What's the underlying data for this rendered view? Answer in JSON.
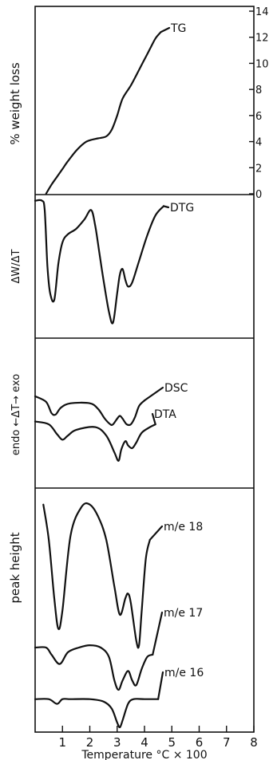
{
  "chart_data": {
    "type": "line",
    "xlabel": "Temperature °C × 100",
    "x_ticks": [
      "1",
      "2",
      "3",
      "4",
      "5",
      "6",
      "7",
      "8"
    ],
    "xlim": [
      0,
      8
    ],
    "panels": [
      {
        "id": "tg",
        "ylabel": "% weight loss",
        "right_ticks": [
          "0",
          "2",
          "4",
          "6",
          "8",
          "10",
          "12",
          "14"
        ],
        "ylim": [
          0,
          14
        ],
        "series": [
          {
            "name": "TG",
            "x": [
              0.4,
              0.6,
              0.8,
              1.0,
              1.2,
              1.5,
              1.8,
              2.0,
              2.3,
              2.6,
              2.8,
              3.0,
              3.2,
              3.5,
              3.8,
              4.0,
              4.2,
              4.4,
              4.6
            ],
            "y": [
              0.0,
              0.7,
              1.3,
              1.9,
              2.5,
              3.3,
              3.9,
              4.1,
              4.25,
              4.4,
              4.9,
              6.0,
              7.3,
              8.3,
              9.5,
              10.3,
              11.1,
              11.9,
              12.4
            ]
          }
        ]
      },
      {
        "id": "dtg",
        "ylabel": "ΔW/ΔT",
        "series": [
          {
            "name": "DTG",
            "x": [
              0.0,
              0.25,
              0.35,
              0.45,
              0.55,
              0.7,
              0.85,
              1.0,
              1.2,
              1.5,
              1.8,
              2.05,
              2.2,
              2.35,
              2.5,
              2.7,
              2.85,
              3.0,
              3.1,
              3.2,
              3.3,
              3.4,
              3.55,
              3.8,
              4.1,
              4.4,
              4.7
            ],
            "y": [
              0.99,
              0.99,
              0.92,
              0.5,
              0.3,
              0.25,
              0.52,
              0.68,
              0.74,
              0.78,
              0.85,
              0.92,
              0.8,
              0.6,
              0.4,
              0.16,
              0.08,
              0.3,
              0.44,
              0.48,
              0.4,
              0.35,
              0.38,
              0.54,
              0.73,
              0.88,
              0.95
            ]
          }
        ]
      },
      {
        "id": "dsc_dta",
        "ylabel": "endo ←ΔT→ exo",
        "series": [
          {
            "name": "DSC",
            "x": [
              0.0,
              0.4,
              0.6,
              0.75,
              0.95,
              1.3,
              2.0,
              2.3,
              2.55,
              2.75,
              2.85,
              3.0,
              3.1,
              3.2,
              3.35,
              3.5,
              3.65,
              3.8,
              4.0
            ],
            "y": [
              0.62,
              0.58,
              0.5,
              0.49,
              0.54,
              0.57,
              0.57,
              0.53,
              0.46,
              0.42,
              0.42,
              0.46,
              0.48,
              0.46,
              0.42,
              0.42,
              0.47,
              0.55,
              0.59
            ]
          },
          {
            "name": "DTA",
            "x": [
              0.0,
              0.5,
              0.8,
              1.0,
              1.2,
              1.5,
              2.2,
              2.6,
              2.9,
              3.05,
              3.15,
              3.3,
              3.4,
              3.55,
              3.7,
              3.9,
              4.2,
              4.4
            ],
            "y": [
              0.44,
              0.42,
              0.35,
              0.31,
              0.34,
              0.38,
              0.4,
              0.34,
              0.22,
              0.16,
              0.24,
              0.3,
              0.27,
              0.25,
              0.29,
              0.36,
              0.4,
              0.42
            ]
          }
        ]
      },
      {
        "id": "ms",
        "ylabel": "peak height",
        "series": [
          {
            "name": "m/e 18",
            "x": [
              0.3,
              0.5,
              0.7,
              0.85,
              1.0,
              1.3,
              1.7,
              2.0,
              2.3,
              2.6,
              2.9,
              3.1,
              3.3,
              3.4,
              3.5,
              3.7,
              3.8,
              3.9,
              4.05,
              4.2
            ],
            "y": [
              0.95,
              0.8,
              0.55,
              0.42,
              0.5,
              0.82,
              0.94,
              0.95,
              0.9,
              0.8,
              0.6,
              0.48,
              0.55,
              0.57,
              0.53,
              0.37,
              0.35,
              0.5,
              0.72,
              0.8
            ]
          },
          {
            "name": "m/e 17",
            "x": [
              0.0,
              0.4,
              0.6,
              0.9,
              1.2,
              1.6,
              2.0,
              2.4,
              2.7,
              2.9,
              3.05,
              3.2,
              3.4,
              3.55,
              3.7,
              3.9,
              4.1,
              4.3
            ],
            "y": [
              0.34,
              0.34,
              0.31,
              0.27,
              0.32,
              0.34,
              0.35,
              0.34,
              0.3,
              0.2,
              0.16,
              0.2,
              0.24,
              0.2,
              0.18,
              0.25,
              0.3,
              0.31
            ]
          },
          {
            "name": "m/e 16",
            "x": [
              0.0,
              0.5,
              0.8,
              1.0,
              1.3,
              2.0,
              2.5,
              2.8,
              3.0,
              3.1,
              3.2,
              3.4,
              3.6,
              4.0,
              4.5
            ],
            "y": [
              0.12,
              0.12,
              0.1,
              0.12,
              0.12,
              0.12,
              0.11,
              0.08,
              0.02,
              0.0,
              0.03,
              0.1,
              0.12,
              0.12,
              0.12
            ]
          }
        ]
      }
    ]
  }
}
